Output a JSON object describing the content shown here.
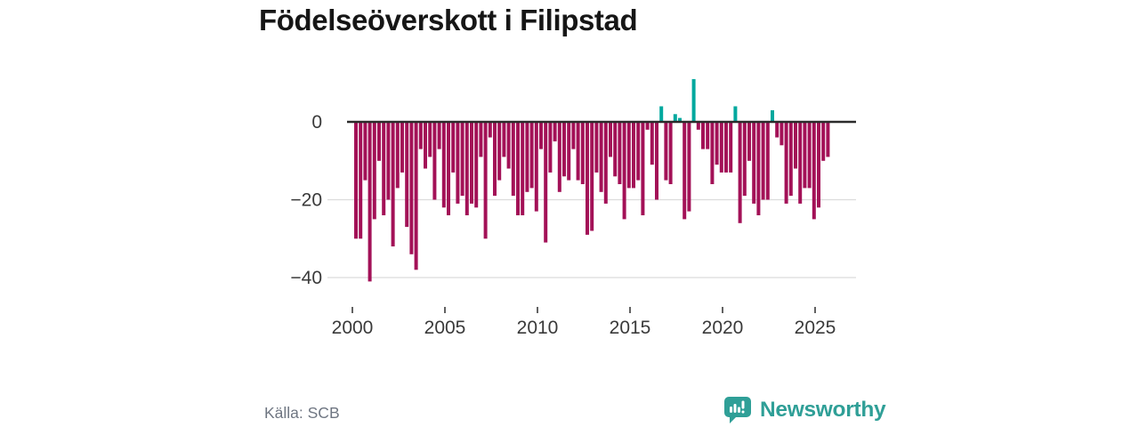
{
  "title": "Födelseöverskott i Filipstad",
  "source": "Källa: SCB",
  "brand": {
    "name": "Newsworthy",
    "color": "#2f9f97"
  },
  "chart_data": {
    "type": "bar",
    "title": "Födelseöverskott i Filipstad",
    "frequency": "quarterly",
    "start_period": "2000-Q1",
    "end_period": "2025-Q3",
    "x_tick_labels": [
      "2000",
      "2005",
      "2010",
      "2015",
      "2020",
      "2025"
    ],
    "y_ticks": [
      0,
      -20,
      -40
    ],
    "y_tick_labels": [
      "0",
      "−20",
      "−40"
    ],
    "ylim": [
      -44,
      13
    ],
    "grid": "horizontal",
    "legend": "none",
    "colors": {
      "negative": "#a31157",
      "positive": "#00a89e"
    },
    "values": [
      -30,
      -30,
      -15,
      -41,
      -25,
      -10,
      -24,
      -20,
      -32,
      -17,
      -13,
      -27,
      -34,
      -38,
      -7,
      -12,
      -9,
      -20,
      -7,
      -22,
      -24,
      -13,
      -21,
      -19,
      -24,
      -21,
      -22,
      -9,
      -30,
      -4,
      -19,
      -15,
      -9,
      -12,
      -19,
      -24,
      -24,
      -18,
      -17,
      -23,
      -7,
      -31,
      -13,
      -5,
      -18,
      -14,
      -15,
      -7,
      -15,
      -16,
      -29,
      -28,
      -13,
      -18,
      -21,
      -9,
      -14,
      -16,
      -25,
      -17,
      -17,
      -15,
      -24,
      -2,
      -11,
      -20,
      4,
      -15,
      -16,
      2,
      1,
      -25,
      -23,
      11,
      -2,
      -7,
      -7,
      -16,
      -11,
      -13,
      -13,
      -13,
      4,
      -26,
      -19,
      -10,
      -21,
      -24,
      -20,
      -20,
      3,
      -4,
      -6,
      -21,
      -19,
      -12,
      -21,
      -17,
      -17,
      -25,
      -22,
      -10,
      -9
    ]
  }
}
